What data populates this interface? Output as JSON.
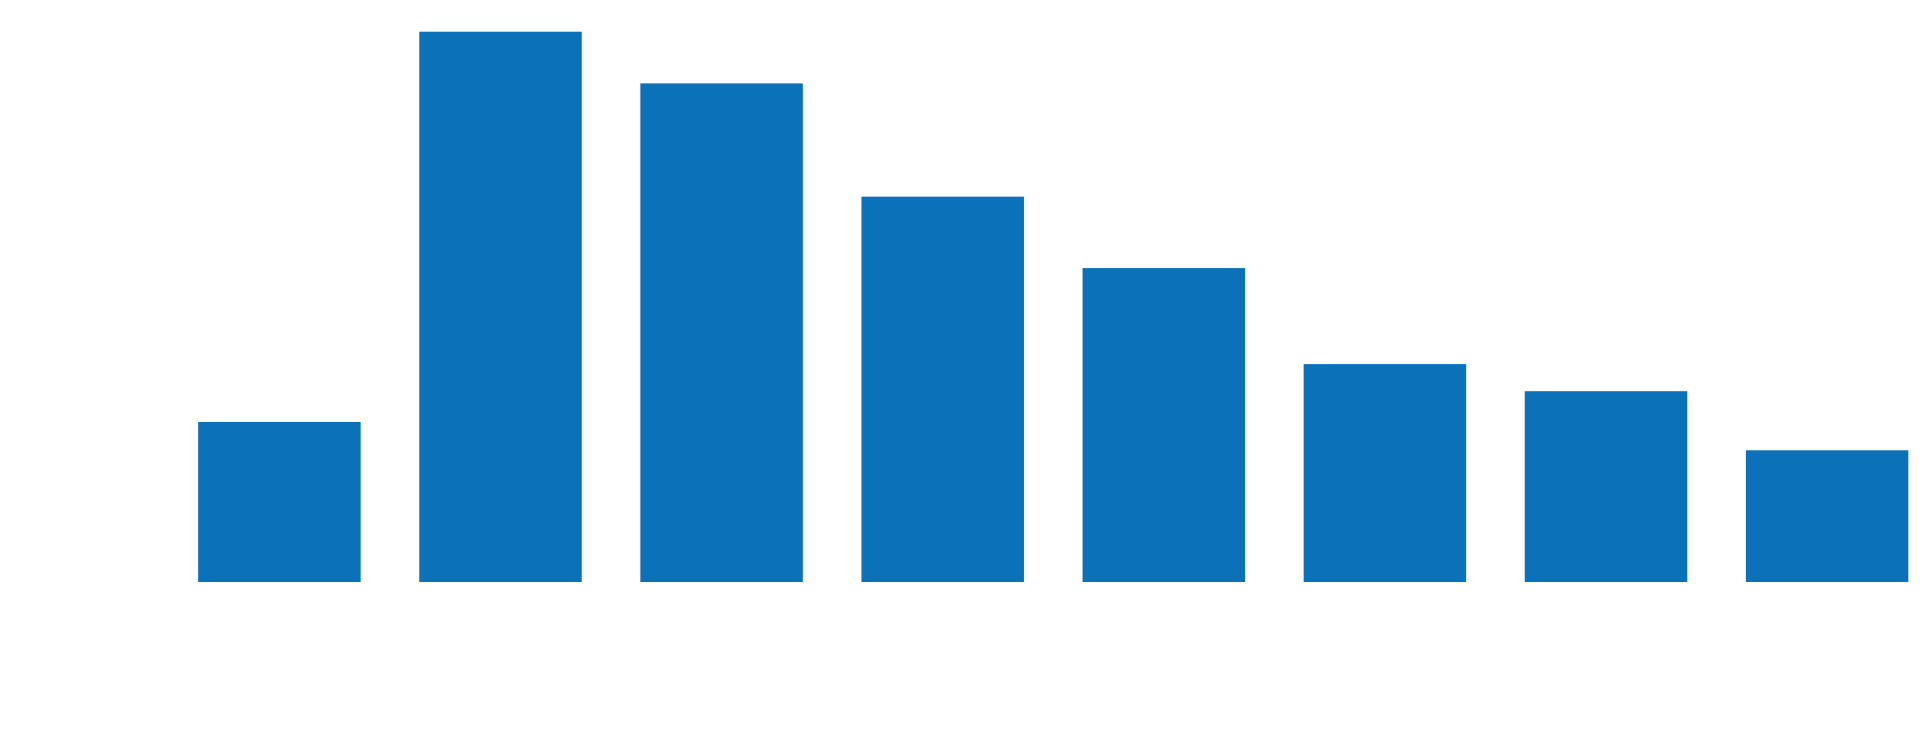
{
  "chart_data": {
    "type": "bar",
    "values": [
      130,
      447,
      405,
      313,
      255,
      177,
      155,
      107
    ],
    "color": "#0b72b9",
    "ylim": [
      0,
      450
    ]
  }
}
